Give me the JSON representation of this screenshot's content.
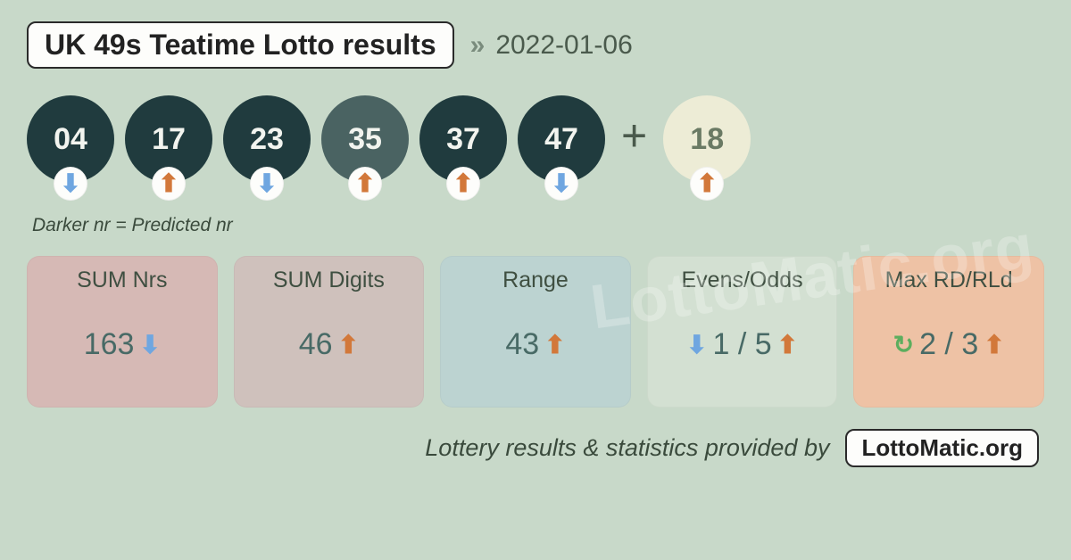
{
  "colors": {
    "background": "#c8d9c9",
    "ball_dark": "#203b3e",
    "ball_predicted": "#4a6362",
    "ball_bonus": "#edecd6",
    "ball_text_light": "#f2f4ef",
    "ball_text_dark": "#556b55",
    "arrow_up": "#d2783a",
    "arrow_down": "#6fa6e0",
    "refresh": "#5cae5e",
    "stat_text": "#486a66"
  },
  "header": {
    "title": "UK 49s Teatime Lotto results",
    "date": "2022-01-06"
  },
  "balls": [
    {
      "num": "04",
      "bg": "#203b3e",
      "fg": "#f2f4ef",
      "arrow": "down"
    },
    {
      "num": "17",
      "bg": "#203b3e",
      "fg": "#f2f4ef",
      "arrow": "up"
    },
    {
      "num": "23",
      "bg": "#203b3e",
      "fg": "#f2f4ef",
      "arrow": "down"
    },
    {
      "num": "35",
      "bg": "#4a6362",
      "fg": "#f2f4ef",
      "arrow": "up"
    },
    {
      "num": "37",
      "bg": "#203b3e",
      "fg": "#f2f4ef",
      "arrow": "up"
    },
    {
      "num": "47",
      "bg": "#203b3e",
      "fg": "#f2f4ef",
      "arrow": "down"
    }
  ],
  "bonus": {
    "num": "18",
    "bg": "#edecd6",
    "fg": "#6a7a64",
    "arrow": "up"
  },
  "plus": "+",
  "legend": "Darker nr = Predicted nr",
  "stats": [
    {
      "title": "SUM Nrs",
      "bg": "#d6b9b5",
      "value_color": "#486a66",
      "left_icon": null,
      "value": "163",
      "right_icon": "down"
    },
    {
      "title": "SUM Digits",
      "bg": "#cfc1bc",
      "value_color": "#486a66",
      "left_icon": null,
      "value": "46",
      "right_icon": "up"
    },
    {
      "title": "Range",
      "bg": "#bcd3d1",
      "value_color": "#486a66",
      "left_icon": null,
      "value": "43",
      "right_icon": "up"
    },
    {
      "title": "Evens/Odds",
      "bg": "#d3e0d2",
      "value_color": "#486a66",
      "left_icon": "down",
      "value": "1 / 5",
      "right_icon": "up"
    },
    {
      "title": "Max RD/RLd",
      "bg": "#eec2a5",
      "value_color": "#486a66",
      "left_icon": "refresh",
      "value": "2 / 3",
      "right_icon": "up"
    }
  ],
  "footer": {
    "text": "Lottery results & statistics provided by",
    "brand": "LottoMatic.org"
  },
  "watermark": "LottoMatic.org"
}
